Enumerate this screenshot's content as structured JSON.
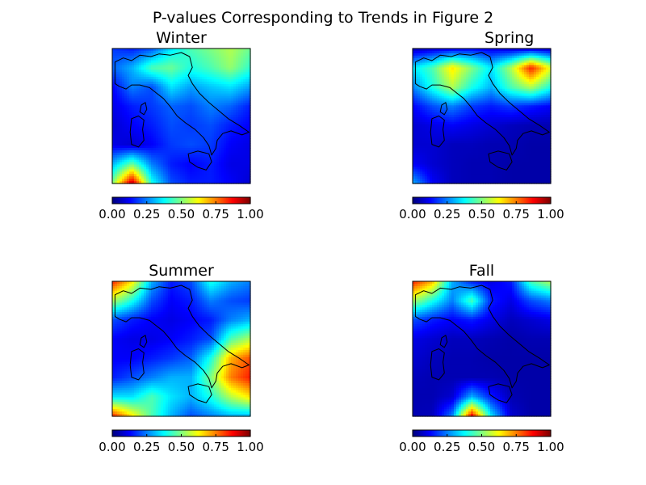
{
  "figure": {
    "title": "P-values Corresponding to Trends in Figure 2"
  },
  "chart_data": [
    {
      "type": "heatmap",
      "title": "Winter",
      "colormap": "jet",
      "colorbar": {
        "range": [
          0,
          1
        ],
        "ticks": [
          "0.00",
          "0.25",
          "0.50",
          "0.75",
          "1.00"
        ]
      },
      "grid_lon": [
        6,
        8,
        10,
        12,
        14,
        16,
        18,
        20
      ],
      "grid_lat": [
        47,
        45.5,
        44,
        42.5,
        41,
        39.5,
        38,
        36.5
      ],
      "values": [
        [
          0.18,
          0.15,
          0.2,
          0.35,
          0.45,
          0.5,
          0.55,
          0.48
        ],
        [
          0.22,
          0.3,
          0.45,
          0.48,
          0.4,
          0.45,
          0.52,
          0.42
        ],
        [
          0.12,
          0.25,
          0.2,
          0.35,
          0.28,
          0.32,
          0.35,
          0.28
        ],
        [
          0.1,
          0.15,
          0.18,
          0.22,
          0.2,
          0.25,
          0.22,
          0.15
        ],
        [
          0.08,
          0.12,
          0.15,
          0.2,
          0.18,
          0.2,
          0.15,
          0.12
        ],
        [
          0.1,
          0.08,
          0.12,
          0.18,
          0.2,
          0.18,
          0.12,
          0.1
        ],
        [
          0.3,
          0.48,
          0.25,
          0.15,
          0.12,
          0.15,
          0.1,
          0.1
        ],
        [
          0.5,
          0.95,
          0.4,
          0.2,
          0.15,
          0.15,
          0.12,
          0.08
        ]
      ]
    },
    {
      "type": "heatmap",
      "title": "Spring",
      "colormap": "jet",
      "colorbar": {
        "range": [
          0,
          1
        ],
        "ticks": [
          "0.00",
          "0.25",
          "0.50",
          "0.75",
          "1.00"
        ]
      },
      "grid_lon": [
        6,
        8,
        10,
        12,
        14,
        16,
        18,
        20
      ],
      "grid_lat": [
        47,
        45.5,
        44,
        42.5,
        41,
        39.5,
        38,
        36.5
      ],
      "values": [
        [
          0.05,
          0.08,
          0.1,
          0.12,
          0.1,
          0.08,
          0.08,
          0.06
        ],
        [
          0.35,
          0.45,
          0.65,
          0.5,
          0.35,
          0.55,
          0.85,
          0.6
        ],
        [
          0.25,
          0.4,
          0.55,
          0.4,
          0.3,
          0.45,
          0.55,
          0.4
        ],
        [
          0.12,
          0.2,
          0.25,
          0.18,
          0.15,
          0.18,
          0.15,
          0.12
        ],
        [
          0.08,
          0.1,
          0.12,
          0.1,
          0.08,
          0.06,
          0.05,
          0.05
        ],
        [
          0.08,
          0.08,
          0.06,
          0.06,
          0.05,
          0.05,
          0.04,
          0.04
        ],
        [
          0.12,
          0.08,
          0.06,
          0.05,
          0.05,
          0.04,
          0.04,
          0.04
        ],
        [
          0.3,
          0.12,
          0.06,
          0.05,
          0.05,
          0.04,
          0.04,
          0.04
        ]
      ]
    },
    {
      "type": "heatmap",
      "title": "Summer",
      "colormap": "jet",
      "colorbar": {
        "range": [
          0,
          1
        ],
        "ticks": [
          "0.00",
          "0.25",
          "0.50",
          "0.75",
          "1.00"
        ]
      },
      "grid_lon": [
        6,
        8,
        10,
        12,
        14,
        16,
        18,
        20
      ],
      "grid_lat": [
        47,
        45.5,
        44,
        42.5,
        41,
        39.5,
        38,
        36.5
      ],
      "values": [
        [
          0.85,
          0.65,
          0.3,
          0.15,
          0.2,
          0.4,
          0.3,
          0.25
        ],
        [
          0.55,
          0.4,
          0.2,
          0.12,
          0.15,
          0.25,
          0.2,
          0.18
        ],
        [
          0.2,
          0.15,
          0.12,
          0.1,
          0.12,
          0.15,
          0.25,
          0.3
        ],
        [
          0.12,
          0.1,
          0.1,
          0.12,
          0.15,
          0.2,
          0.45,
          0.55
        ],
        [
          0.12,
          0.12,
          0.15,
          0.18,
          0.22,
          0.4,
          0.7,
          0.8
        ],
        [
          0.15,
          0.2,
          0.25,
          0.3,
          0.3,
          0.5,
          0.75,
          0.85
        ],
        [
          0.35,
          0.35,
          0.45,
          0.35,
          0.3,
          0.4,
          0.55,
          0.65
        ],
        [
          0.85,
          0.65,
          0.45,
          0.3,
          0.2,
          0.25,
          0.3,
          0.3
        ]
      ]
    },
    {
      "type": "heatmap",
      "title": "Fall",
      "colormap": "jet",
      "colorbar": {
        "range": [
          0,
          1
        ],
        "ticks": [
          "0.00",
          "0.25",
          "0.50",
          "0.75",
          "1.00"
        ]
      },
      "grid_lon": [
        6,
        8,
        10,
        12,
        14,
        16,
        18,
        20
      ],
      "grid_lat": [
        47,
        45.5,
        44,
        42.5,
        41,
        39.5,
        38,
        36.5
      ],
      "values": [
        [
          0.85,
          0.7,
          0.3,
          0.15,
          0.1,
          0.15,
          0.45,
          0.55
        ],
        [
          0.55,
          0.4,
          0.25,
          0.45,
          0.15,
          0.1,
          0.2,
          0.25
        ],
        [
          0.2,
          0.15,
          0.12,
          0.15,
          0.1,
          0.06,
          0.08,
          0.1
        ],
        [
          0.1,
          0.08,
          0.06,
          0.06,
          0.05,
          0.04,
          0.05,
          0.05
        ],
        [
          0.08,
          0.06,
          0.05,
          0.05,
          0.04,
          0.04,
          0.04,
          0.04
        ],
        [
          0.06,
          0.05,
          0.05,
          0.05,
          0.05,
          0.04,
          0.04,
          0.04
        ],
        [
          0.05,
          0.05,
          0.08,
          0.3,
          0.15,
          0.05,
          0.04,
          0.04
        ],
        [
          0.05,
          0.06,
          0.25,
          0.9,
          0.35,
          0.08,
          0.04,
          0.04
        ]
      ]
    }
  ]
}
